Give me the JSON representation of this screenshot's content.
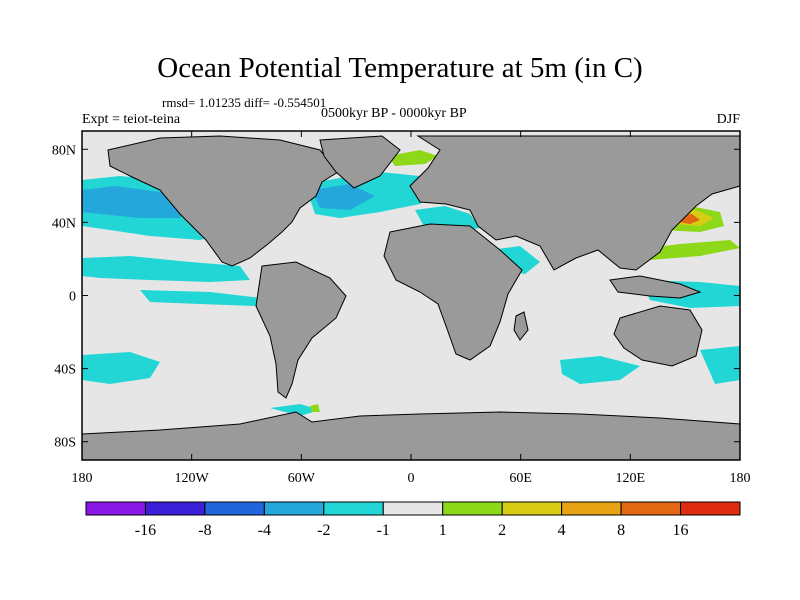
{
  "title": "Ocean Potential Temperature at 5m (in C)",
  "stats": "rmsd= 1.01235 diff= -0.554501",
  "period": "0500kyr BP - 0000kyr BP",
  "experiment": "Expt = teiot-teina",
  "season": "DJF",
  "axes": {
    "x_ticks": [
      {
        "lon": -180,
        "label": "180"
      },
      {
        "lon": -120,
        "label": "120W"
      },
      {
        "lon": -60,
        "label": "60W"
      },
      {
        "lon": 0,
        "label": "0"
      },
      {
        "lon": 60,
        "label": "60E"
      },
      {
        "lon": 120,
        "label": "120E"
      },
      {
        "lon": 180,
        "label": "180"
      }
    ],
    "y_ticks": [
      {
        "lat": 80,
        "label": "80N"
      },
      {
        "lat": 40,
        "label": "40N"
      },
      {
        "lat": 0,
        "label": "0"
      },
      {
        "lat": -40,
        "label": "40S"
      },
      {
        "lat": -80,
        "label": "80S"
      }
    ],
    "lon_range": [
      -180,
      180
    ],
    "lat_range": [
      -90,
      90
    ]
  },
  "colorbar": {
    "colors": [
      "#8a18e6",
      "#3c20d8",
      "#2266dc",
      "#24a8dc",
      "#22d6d6",
      "#e6e6e6",
      "#8ed81a",
      "#d8cc14",
      "#e8a414",
      "#e26814",
      "#de2c10"
    ],
    "labels": [
      "-16",
      "-8",
      "-4",
      "-2",
      "-1",
      "1",
      "2",
      "4",
      "8",
      "16"
    ]
  },
  "colors": {
    "land": "#9a9a9a",
    "neutral": "#e6e6e6",
    "cool1": "#22d6d6",
    "cool2": "#24a8dc",
    "warm1": "#8ed81a",
    "warm2": "#d8cc14",
    "warm3": "#e8a414",
    "warm4": "#e26814"
  }
}
